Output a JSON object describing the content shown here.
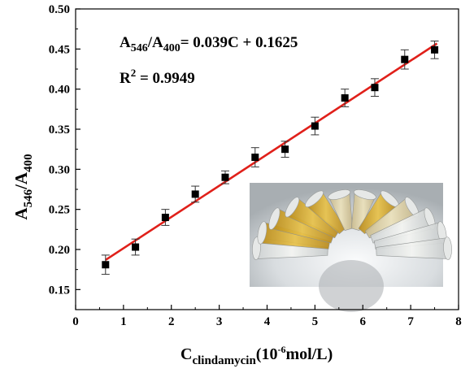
{
  "chart_data": {
    "type": "scatter",
    "x": [
      0.625,
      1.25,
      1.875,
      2.5,
      3.125,
      3.75,
      4.375,
      5.0,
      5.625,
      6.25,
      6.875,
      7.5
    ],
    "y": [
      0.181,
      0.203,
      0.24,
      0.269,
      0.29,
      0.315,
      0.325,
      0.354,
      0.389,
      0.402,
      0.437,
      0.449
    ],
    "yerr": [
      0.012,
      0.01,
      0.01,
      0.01,
      0.008,
      0.012,
      0.01,
      0.011,
      0.011,
      0.011,
      0.012,
      0.011
    ],
    "fit": {
      "slope": 0.039,
      "intercept": 0.1625,
      "x_range": [
        0.625,
        7.55
      ]
    },
    "xlim": [
      0,
      8
    ],
    "ylim": [
      0.125,
      0.5
    ],
    "x_ticks": [
      "0",
      "1",
      "2",
      "3",
      "4",
      "5",
      "6",
      "7",
      "8"
    ],
    "y_ticks": [
      "0.15",
      "0.20",
      "0.25",
      "0.30",
      "0.35",
      "0.40",
      "0.45",
      "0.50"
    ],
    "ylabel": {
      "main": "A",
      "sub1": "546",
      "slash": "/A",
      "sub2": "400"
    },
    "xlabel": {
      "main": "C",
      "sub": "clindamycin",
      "rest1": "(10",
      "sup": "-6",
      "rest2": "mol/L)"
    },
    "annotations": {
      "equation": {
        "a": "A",
        "s1": "546",
        "mid": "/A",
        "s2": "400",
        "rest": "= 0.039C + 0.1625"
      },
      "r2": {
        "r": "R",
        "sup": "2",
        "rest": " = 0.9949"
      }
    },
    "inset_photo": "row of centrifuge tubes with yellow to clear solutions",
    "grid": false,
    "colors": {
      "fit_line": "#e0201a",
      "marker": "#000000",
      "axis": "#000000"
    }
  }
}
